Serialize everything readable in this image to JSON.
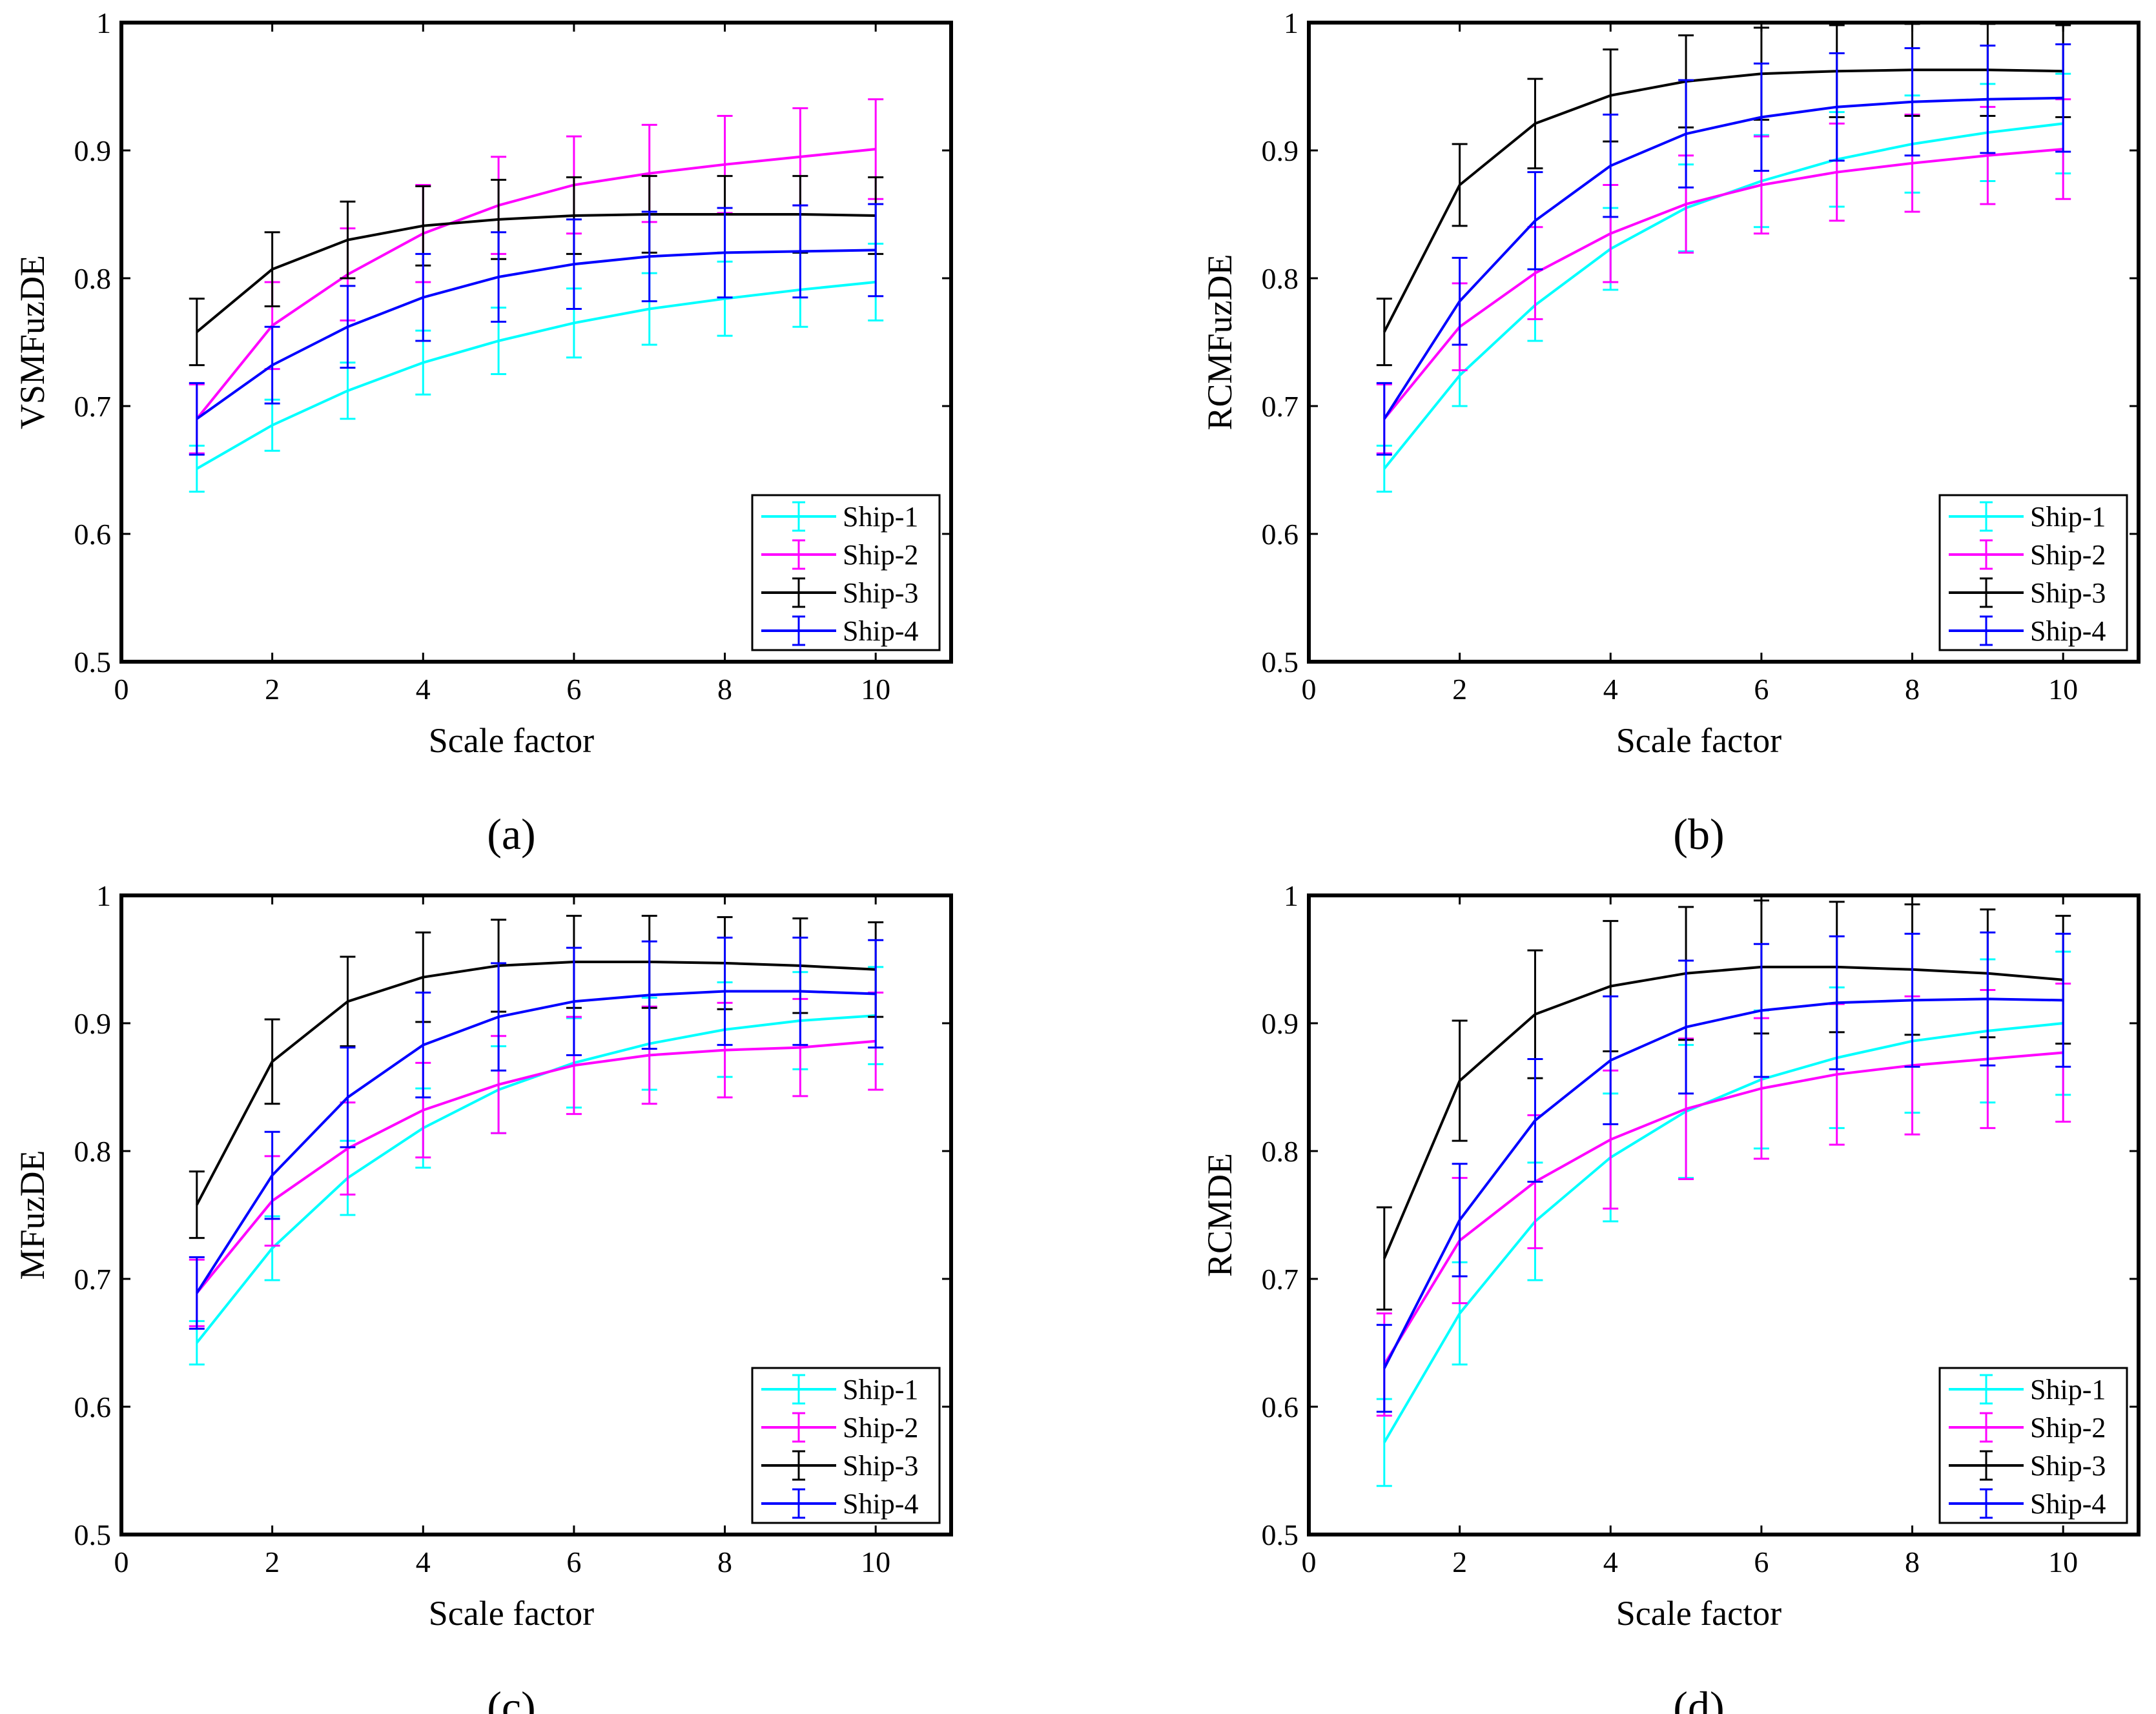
{
  "figure": {
    "series_colors": {
      "Ship-1": "#00ffff",
      "Ship-2": "#ff00ff",
      "Ship-3": "#000000",
      "Ship-4": "#0000ff"
    },
    "axis_color": "#000000"
  },
  "chart_data": [
    {
      "panel": "a",
      "tag": "(a)",
      "type": "line",
      "error_bars": true,
      "xlabel": "Scale factor",
      "ylabel": "VSMFuzDE",
      "xlim": [
        0,
        11
      ],
      "ylim": [
        0.5,
        1
      ],
      "xticks": [
        0,
        2,
        4,
        6,
        8,
        10
      ],
      "yticks": [
        0.5,
        0.6,
        0.7,
        0.8,
        0.9,
        1
      ],
      "ytick_labels": [
        "0.5",
        "0.6",
        "0.7",
        "0.8",
        "0.9",
        "1"
      ],
      "legend_position": "bottom-right",
      "x": [
        1,
        2,
        3,
        4,
        5,
        6,
        7,
        8,
        9,
        10
      ],
      "series": [
        {
          "name": "Ship-1",
          "values": [
            0.651,
            0.685,
            0.712,
            0.734,
            0.751,
            0.765,
            0.776,
            0.784,
            0.791,
            0.797
          ],
          "error": [
            0.018,
            0.02,
            0.022,
            0.025,
            0.026,
            0.027,
            0.028,
            0.029,
            0.029,
            0.03
          ]
        },
        {
          "name": "Ship-2",
          "values": [
            0.69,
            0.763,
            0.803,
            0.835,
            0.857,
            0.873,
            0.882,
            0.889,
            0.895,
            0.901
          ],
          "error": [
            0.027,
            0.034,
            0.036,
            0.038,
            0.038,
            0.038,
            0.038,
            0.038,
            0.038,
            0.039
          ]
        },
        {
          "name": "Ship-3",
          "values": [
            0.758,
            0.807,
            0.83,
            0.841,
            0.846,
            0.849,
            0.85,
            0.85,
            0.85,
            0.849
          ],
          "error": [
            0.026,
            0.029,
            0.03,
            0.031,
            0.031,
            0.03,
            0.03,
            0.03,
            0.03,
            0.03
          ]
        },
        {
          "name": "Ship-4",
          "values": [
            0.69,
            0.732,
            0.762,
            0.785,
            0.801,
            0.811,
            0.817,
            0.82,
            0.821,
            0.822
          ],
          "error": [
            0.028,
            0.03,
            0.032,
            0.034,
            0.035,
            0.035,
            0.035,
            0.035,
            0.036,
            0.036
          ]
        }
      ]
    },
    {
      "panel": "b",
      "tag": "(b)",
      "type": "line",
      "error_bars": true,
      "xlabel": "Scale factor",
      "ylabel": "RCMFuzDE",
      "xlim": [
        0,
        11
      ],
      "ylim": [
        0.5,
        1
      ],
      "xticks": [
        0,
        2,
        4,
        6,
        8,
        10
      ],
      "yticks": [
        0.5,
        0.6,
        0.7,
        0.8,
        0.9,
        1
      ],
      "ytick_labels": [
        "0.5",
        "0.6",
        "0.7",
        "0.8",
        "0.9",
        "1"
      ],
      "legend_position": "bottom-right",
      "x": [
        1,
        2,
        3,
        4,
        5,
        6,
        7,
        8,
        9,
        10
      ],
      "series": [
        {
          "name": "Ship-1",
          "values": [
            0.651,
            0.724,
            0.779,
            0.823,
            0.855,
            0.876,
            0.893,
            0.905,
            0.914,
            0.921
          ],
          "error": [
            0.018,
            0.024,
            0.028,
            0.032,
            0.034,
            0.036,
            0.037,
            0.038,
            0.038,
            0.039
          ]
        },
        {
          "name": "Ship-2",
          "values": [
            0.69,
            0.762,
            0.804,
            0.835,
            0.858,
            0.873,
            0.883,
            0.89,
            0.896,
            0.901
          ],
          "error": [
            0.027,
            0.034,
            0.036,
            0.038,
            0.038,
            0.038,
            0.038,
            0.038,
            0.038,
            0.039
          ]
        },
        {
          "name": "Ship-3",
          "values": [
            0.758,
            0.873,
            0.921,
            0.943,
            0.954,
            0.96,
            0.962,
            0.963,
            0.963,
            0.962
          ],
          "error": [
            0.026,
            0.032,
            0.035,
            0.036,
            0.036,
            0.036,
            0.036,
            0.036,
            0.036,
            0.036
          ]
        },
        {
          "name": "Ship-4",
          "values": [
            0.69,
            0.782,
            0.845,
            0.888,
            0.913,
            0.926,
            0.934,
            0.938,
            0.94,
            0.941
          ],
          "error": [
            0.028,
            0.034,
            0.038,
            0.04,
            0.042,
            0.042,
            0.042,
            0.042,
            0.042,
            0.042
          ]
        }
      ]
    },
    {
      "panel": "c",
      "tag": "(c)",
      "type": "line",
      "error_bars": true,
      "xlabel": "Scale factor",
      "ylabel": "MFuzDE",
      "xlim": [
        0,
        11
      ],
      "ylim": [
        0.5,
        1
      ],
      "xticks": [
        0,
        2,
        4,
        6,
        8,
        10
      ],
      "yticks": [
        0.5,
        0.6,
        0.7,
        0.8,
        0.9,
        1
      ],
      "ytick_labels": [
        "0.5",
        "0.6",
        "0.7",
        "0.8",
        "0.9",
        "1"
      ],
      "legend_position": "bottom-right",
      "x": [
        1,
        2,
        3,
        4,
        5,
        6,
        7,
        8,
        9,
        10
      ],
      "series": [
        {
          "name": "Ship-1",
          "values": [
            0.65,
            0.724,
            0.779,
            0.818,
            0.848,
            0.869,
            0.884,
            0.895,
            0.902,
            0.906
          ],
          "error": [
            0.017,
            0.025,
            0.029,
            0.031,
            0.034,
            0.035,
            0.036,
            0.037,
            0.038,
            0.038
          ]
        },
        {
          "name": "Ship-2",
          "values": [
            0.689,
            0.761,
            0.802,
            0.832,
            0.852,
            0.867,
            0.875,
            0.879,
            0.881,
            0.886
          ],
          "error": [
            0.026,
            0.035,
            0.036,
            0.037,
            0.038,
            0.038,
            0.038,
            0.037,
            0.038,
            0.038
          ]
        },
        {
          "name": "Ship-3",
          "values": [
            0.758,
            0.87,
            0.917,
            0.936,
            0.945,
            0.948,
            0.948,
            0.947,
            0.945,
            0.942
          ],
          "error": [
            0.026,
            0.033,
            0.035,
            0.035,
            0.036,
            0.036,
            0.036,
            0.036,
            0.037,
            0.037
          ]
        },
        {
          "name": "Ship-4",
          "values": [
            0.689,
            0.781,
            0.842,
            0.883,
            0.905,
            0.917,
            0.922,
            0.925,
            0.925,
            0.923
          ],
          "error": [
            0.028,
            0.034,
            0.039,
            0.041,
            0.042,
            0.042,
            0.042,
            0.042,
            0.042,
            0.042
          ]
        }
      ]
    },
    {
      "panel": "d",
      "tag": "(d)",
      "type": "line",
      "error_bars": true,
      "xlabel": "Scale factor",
      "ylabel": "RCMDE",
      "xlim": [
        0,
        11
      ],
      "ylim": [
        0.5,
        1
      ],
      "xticks": [
        0,
        2,
        4,
        6,
        8,
        10
      ],
      "yticks": [
        0.5,
        0.6,
        0.7,
        0.8,
        0.9,
        1
      ],
      "ytick_labels": [
        "0.5",
        "0.6",
        "0.7",
        "0.8",
        "0.9",
        "1"
      ],
      "legend_position": "bottom-right",
      "x": [
        1,
        2,
        3,
        4,
        5,
        6,
        7,
        8,
        9,
        10
      ],
      "series": [
        {
          "name": "Ship-1",
          "values": [
            0.572,
            0.673,
            0.745,
            0.795,
            0.831,
            0.856,
            0.873,
            0.886,
            0.894,
            0.9
          ],
          "error": [
            0.034,
            0.04,
            0.046,
            0.05,
            0.052,
            0.054,
            0.055,
            0.056,
            0.056,
            0.056
          ]
        },
        {
          "name": "Ship-2",
          "values": [
            0.633,
            0.73,
            0.776,
            0.809,
            0.833,
            0.849,
            0.86,
            0.867,
            0.872,
            0.877
          ],
          "error": [
            0.04,
            0.049,
            0.052,
            0.054,
            0.055,
            0.055,
            0.055,
            0.054,
            0.054,
            0.054
          ]
        },
        {
          "name": "Ship-3",
          "values": [
            0.716,
            0.855,
            0.907,
            0.929,
            0.939,
            0.944,
            0.944,
            0.942,
            0.939,
            0.934
          ],
          "error": [
            0.04,
            0.047,
            0.05,
            0.051,
            0.052,
            0.052,
            0.051,
            0.051,
            0.05,
            0.05
          ]
        },
        {
          "name": "Ship-4",
          "values": [
            0.63,
            0.746,
            0.824,
            0.871,
            0.897,
            0.91,
            0.916,
            0.918,
            0.919,
            0.918
          ],
          "error": [
            0.034,
            0.044,
            0.048,
            0.05,
            0.052,
            0.052,
            0.052,
            0.052,
            0.052,
            0.052
          ]
        }
      ]
    }
  ]
}
